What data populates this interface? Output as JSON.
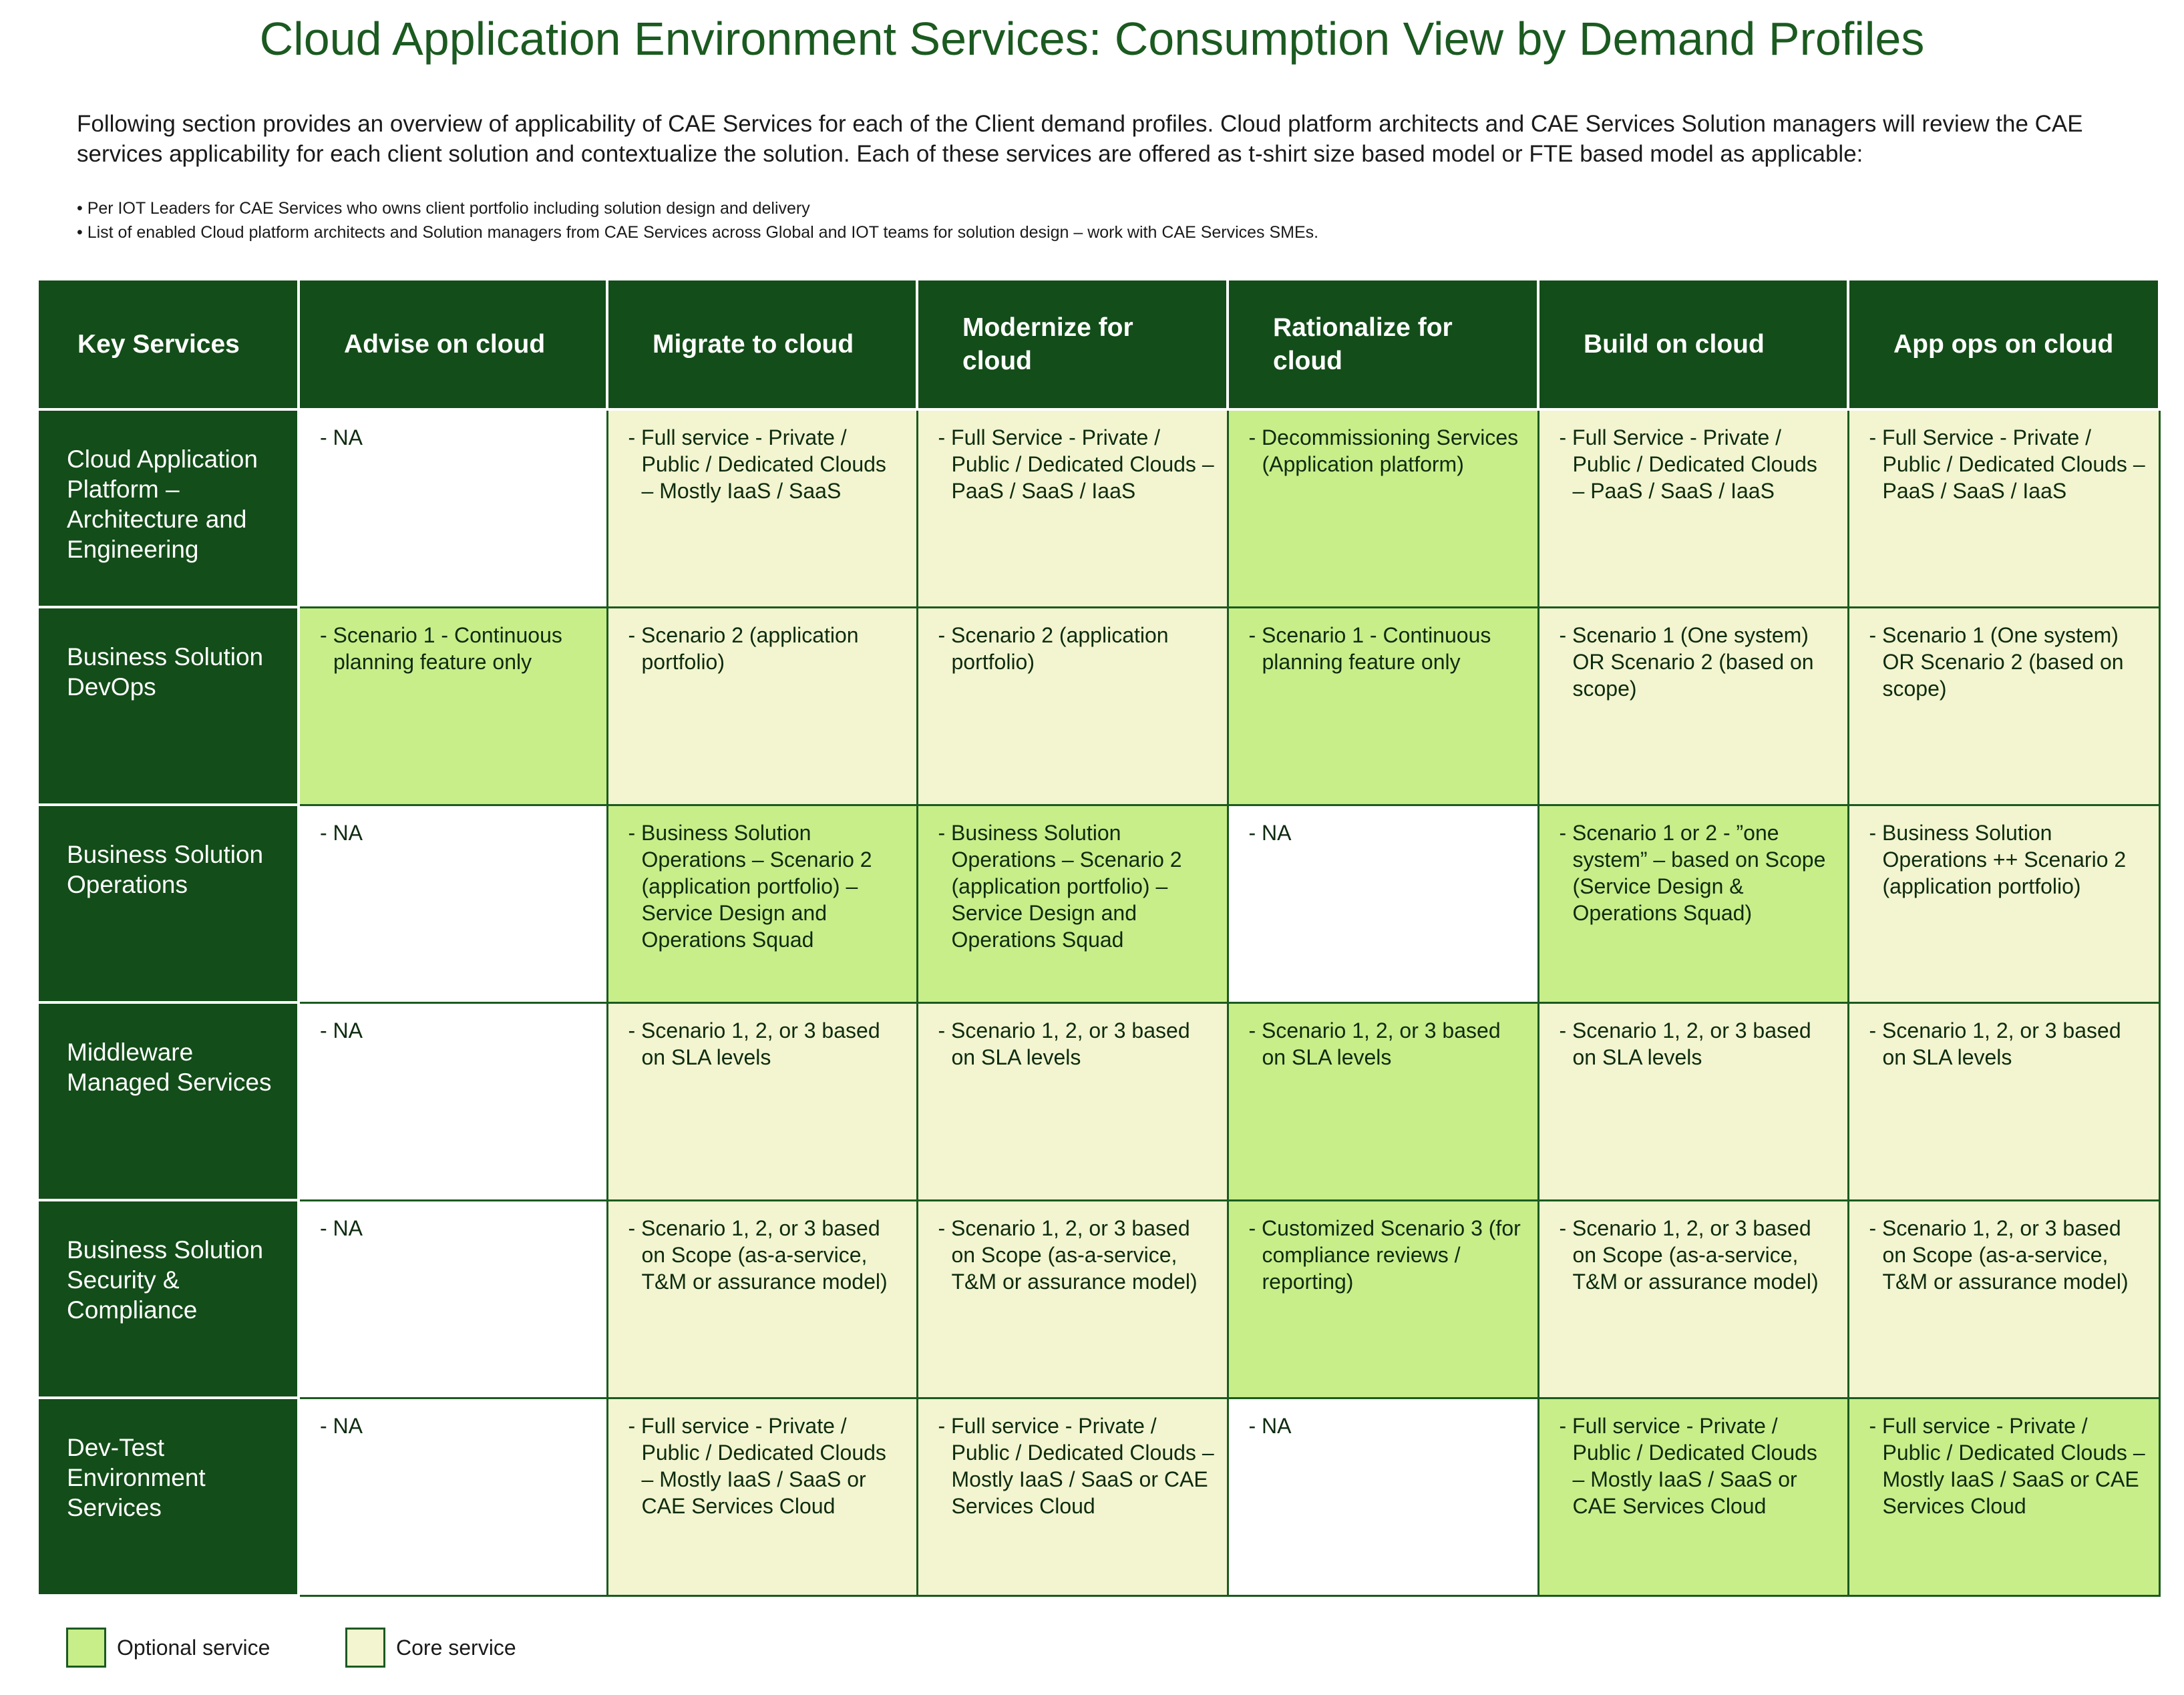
{
  "title": "Cloud Application Environment Services: Consumption View by Demand Profiles",
  "intro": "Following section provides an overview of applicability of CAE Services for each of the Client demand profiles. Cloud platform architects and CAE Services Solution managers will review the CAE services applicability for each client solution and contextualize the solution. Each of these services are offered as t-shirt size based model or FTE based model as applicable:",
  "bullets": [
    "• Per IOT Leaders for CAE Services who owns client portfolio including solution design and delivery",
    "• List of enabled Cloud platform architects and Solution managers from CAE Services across Global and IOT teams for solution design – work with CAE Services SMEs."
  ],
  "colors": {
    "title_green": "#1b5a20",
    "header_dark_green": "#134d19",
    "optional_service": "#c8ee8a",
    "core_service": "#f2f5cf",
    "not_applicable": "#ffffff"
  },
  "table": {
    "headers": [
      "Key Services",
      "Advise on cloud",
      "Migrate to cloud",
      "Modernize for cloud",
      "Rationalize for cloud",
      "Build on cloud",
      "App ops on cloud"
    ],
    "rows": [
      {
        "service": "Cloud Application Platform – Architecture and Engineering",
        "cells": [
          {
            "text": "- NA",
            "type": "white"
          },
          {
            "text": "- Full service - Private / Public / Dedicated Clouds – Mostly IaaS / SaaS",
            "type": "core"
          },
          {
            "text": "- Full Service - Private / Public / Dedicated Clouds – PaaS / SaaS / IaaS",
            "type": "core"
          },
          {
            "text": "- Decommissioning Services (Application platform)",
            "type": "optional"
          },
          {
            "text": "- Full Service - Private / Public / Dedicated Clouds – PaaS / SaaS / IaaS",
            "type": "core"
          },
          {
            "text": "- Full Service - Private / Public / Dedicated Clouds – PaaS / SaaS / IaaS",
            "type": "core"
          }
        ]
      },
      {
        "service": "Business Solution DevOps",
        "cells": [
          {
            "text": "- Scenario 1 - Continuous planning feature only",
            "type": "optional"
          },
          {
            "text": "- Scenario 2 (application portfolio)",
            "type": "core"
          },
          {
            "text": "- Scenario 2 (application portfolio)",
            "type": "core"
          },
          {
            "text": "- Scenario 1 - Continuous planning feature only",
            "type": "optional"
          },
          {
            "text": "- Scenario 1 (One system) OR Scenario 2 (based on scope)",
            "type": "core"
          },
          {
            "text": "- Scenario 1 (One system) OR Scenario 2 (based on scope)",
            "type": "core"
          }
        ]
      },
      {
        "service": "Business Solution Operations",
        "cells": [
          {
            "text": "- NA",
            "type": "white"
          },
          {
            "text": "- Business Solution Operations – Scenario 2 (application portfolio) – Service Design and Operations Squad",
            "type": "optional"
          },
          {
            "text": "- Business Solution Operations – Scenario 2 (application portfolio) – Service Design and Operations Squad",
            "type": "optional"
          },
          {
            "text": "- NA",
            "type": "white"
          },
          {
            "text": "- Scenario 1 or 2 - ”one system” – based on Scope (Service Design & Operations Squad)",
            "type": "optional"
          },
          {
            "text": "- Business Solution Operations ++ Scenario 2 (application portfolio)",
            "type": "core"
          }
        ]
      },
      {
        "service": "Middleware Managed Services",
        "cells": [
          {
            "text": "- NA",
            "type": "white"
          },
          {
            "text": "- Scenario 1, 2, or 3 based on SLA levels",
            "type": "core"
          },
          {
            "text": "- Scenario 1, 2, or 3 based on SLA levels",
            "type": "core"
          },
          {
            "text": "- Scenario 1, 2, or 3 based on SLA levels",
            "type": "optional"
          },
          {
            "text": "- Scenario 1, 2, or 3 based on SLA levels",
            "type": "core"
          },
          {
            "text": "- Scenario 1, 2, or 3 based on SLA levels",
            "type": "core"
          }
        ]
      },
      {
        "service": "Business Solution Security & Compliance",
        "cells": [
          {
            "text": "- NA",
            "type": "white"
          },
          {
            "text": "- Scenario 1, 2, or 3 based on Scope (as-a-service, T&M or assurance model)",
            "type": "core"
          },
          {
            "text": "- Scenario 1, 2, or 3 based on Scope (as-a-service, T&M or assurance model)",
            "type": "core"
          },
          {
            "text": "- Customized Scenario 3 (for compliance reviews / reporting)",
            "type": "optional"
          },
          {
            "text": "- Scenario 1, 2, or 3 based on Scope (as-a-service, T&M or assurance model)",
            "type": "core"
          },
          {
            "text": "- Scenario 1, 2, or 3 based on Scope (as-a-service, T&M or assurance model)",
            "type": "core"
          }
        ]
      },
      {
        "service": "Dev-Test Environment Services",
        "cells": [
          {
            "text": "- NA",
            "type": "white"
          },
          {
            "text": "- Full service - Private / Public / Dedicated Clouds – Mostly IaaS / SaaS or CAE Services Cloud",
            "type": "core"
          },
          {
            "text": "- Full service - Private / Public / Dedicated Clouds – Mostly IaaS / SaaS or CAE Services Cloud",
            "type": "core"
          },
          {
            "text": "- NA",
            "type": "white"
          },
          {
            "text": "- Full service - Private / Public / Dedicated Clouds – Mostly IaaS / SaaS or CAE Services Cloud",
            "type": "optional"
          },
          {
            "text": "- Full service - Private / Public / Dedicated Clouds – Mostly IaaS / SaaS or CAE Services Cloud",
            "type": "optional"
          }
        ]
      }
    ]
  },
  "legend": {
    "optional": "Optional service",
    "core": "Core service"
  }
}
